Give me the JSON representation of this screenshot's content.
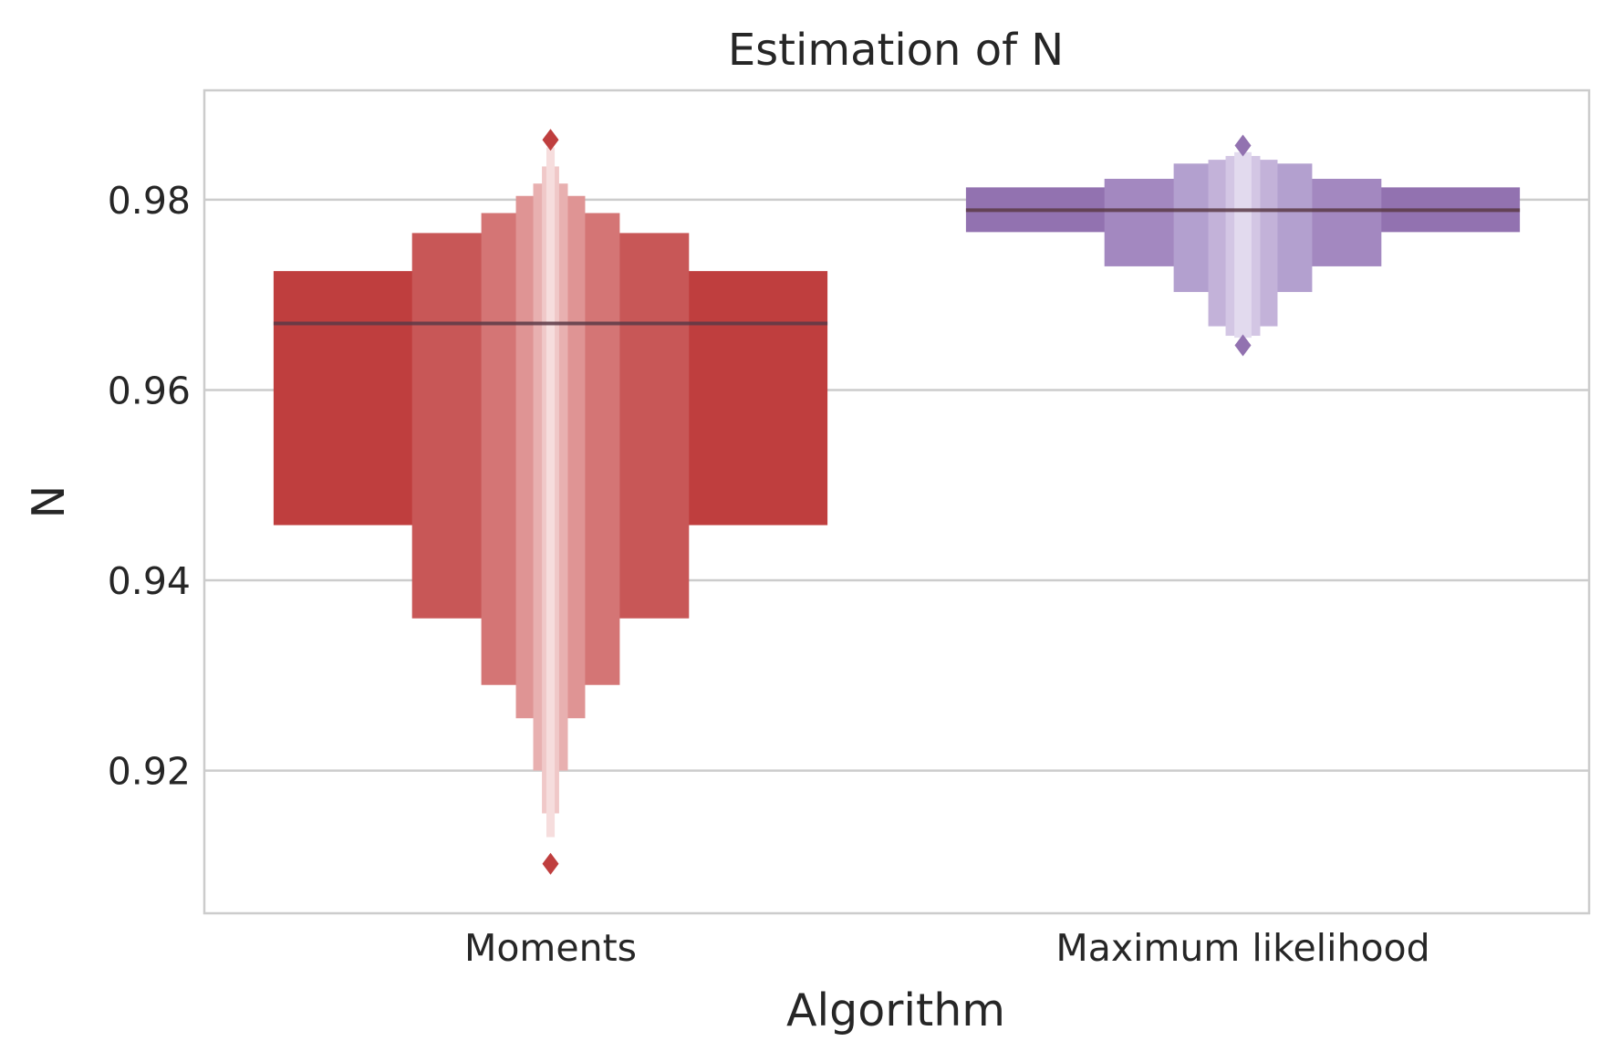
{
  "chart_data": {
    "type": "boxen",
    "title": "Estimation of N",
    "xlabel": "Algorithm",
    "ylabel": "N",
    "ylim": [
      0.905,
      0.9915
    ],
    "yticks": [
      0.92,
      0.94,
      0.96,
      0.98
    ],
    "ytick_labels": [
      "0.92",
      "0.94",
      "0.96",
      "0.98"
    ],
    "grid": true,
    "categories": [
      "Moments",
      "Maximum likelihood"
    ],
    "series": [
      {
        "category": "Moments",
        "color": "#bf3e3e",
        "median": 0.967,
        "levels": [
          {
            "low": 0.9458,
            "high": 0.9725,
            "width": 1.0,
            "color": "#bf3e3e"
          },
          {
            "low": 0.936,
            "high": 0.9765,
            "width": 0.5,
            "color": "#c85757"
          },
          {
            "low": 0.929,
            "high": 0.9786,
            "width": 0.25,
            "color": "#d47575"
          },
          {
            "low": 0.9255,
            "high": 0.9804,
            "width": 0.125,
            "color": "#df9494"
          },
          {
            "low": 0.92,
            "high": 0.9817,
            "width": 0.0625,
            "color": "#e8b0b0"
          },
          {
            "low": 0.9155,
            "high": 0.9835,
            "width": 0.031,
            "color": "#f0c8c8"
          },
          {
            "low": 0.913,
            "high": 0.9855,
            "width": 0.015,
            "color": "#f6dddd"
          }
        ],
        "outliers": [
          0.9102,
          0.9863
        ]
      },
      {
        "category": "Maximum likelihood",
        "color": "#9272b0",
        "median": 0.9789,
        "levels": [
          {
            "low": 0.9766,
            "high": 0.9813,
            "width": 1.0,
            "color": "#9272b0"
          },
          {
            "low": 0.973,
            "high": 0.9822,
            "width": 0.5,
            "color": "#a388c0"
          },
          {
            "low": 0.9703,
            "high": 0.9838,
            "width": 0.25,
            "color": "#b3a0cf"
          },
          {
            "low": 0.9667,
            "high": 0.9842,
            "width": 0.125,
            "color": "#c3b2d9"
          },
          {
            "low": 0.9657,
            "high": 0.9846,
            "width": 0.0625,
            "color": "#d3c6e4"
          },
          {
            "low": 0.9655,
            "high": 0.985,
            "width": 0.031,
            "color": "#e2daee"
          }
        ],
        "outliers": [
          0.9647,
          0.9857
        ]
      }
    ]
  }
}
